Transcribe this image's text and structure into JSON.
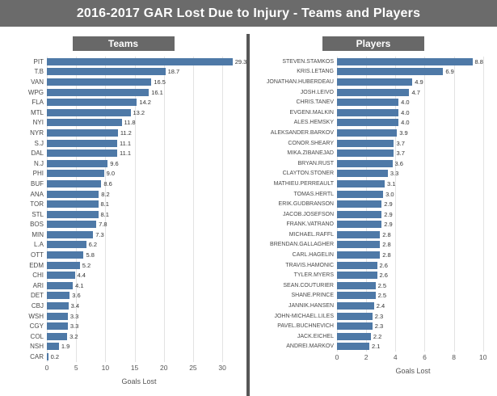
{
  "title": "2016-2017 GAR Lost Due to Injury - Teams and Players",
  "colors": {
    "title_bar_bg": "#6b6b6b",
    "panel_header_bg": "#686868",
    "bar": "#4e79a7",
    "divider": "#575757"
  },
  "chart_data": [
    {
      "type": "bar",
      "orientation": "horizontal",
      "title": "Teams",
      "xlabel": "Goals Lost",
      "xticks": [
        0,
        5,
        10,
        15,
        20,
        25,
        30
      ],
      "xlim": [
        0,
        31.5
      ],
      "grid": true,
      "categories": [
        "PIT",
        "T.B",
        "VAN",
        "WPG",
        "FLA",
        "MTL",
        "NYI",
        "NYR",
        "S.J",
        "DAL",
        "N.J",
        "PHI",
        "BUF",
        "ANA",
        "TOR",
        "STL",
        "BOS",
        "MIN",
        "L.A",
        "OTT",
        "EDM",
        "CHI",
        "ARI",
        "DET",
        "CBJ",
        "WSH",
        "CGY",
        "COL",
        "NSH",
        "CAR"
      ],
      "values": [
        29.3,
        18.7,
        16.5,
        16.1,
        14.2,
        13.2,
        11.8,
        11.2,
        11.1,
        11.1,
        9.6,
        9.0,
        8.6,
        8.2,
        8.1,
        8.1,
        7.8,
        7.3,
        6.2,
        5.8,
        5.2,
        4.4,
        4.1,
        3.6,
        3.4,
        3.3,
        3.3,
        3.2,
        1.9,
        0.2
      ]
    },
    {
      "type": "bar",
      "orientation": "horizontal",
      "title": "Players",
      "xlabel": "Goals Lost",
      "xticks": [
        0,
        2,
        4,
        6,
        8,
        10
      ],
      "xlim": [
        0,
        10.4
      ],
      "grid": true,
      "categories": [
        "STEVEN.STAMKOS",
        "KRIS.LETANG",
        "JONATHAN.HUBERDEAU",
        "JOSH.LEIVO",
        "CHRIS.TANEV",
        "EVGENI.MALKIN",
        "ALES.HEMSKY",
        "ALEKSANDER.BARKOV",
        "CONOR.SHEARY",
        "MIKA.ZIBANEJAD",
        "BRYAN.RUST",
        "CLAYTON.STONER",
        "MATHIEU.PERREAULT",
        "TOMAS.HERTL",
        "ERIK.GUDBRANSON",
        "JACOB.JOSEFSON",
        "FRANK.VATRANO",
        "MICHAEL.RAFFL",
        "BRENDAN.GALLAGHER",
        "CARL.HAGELIN",
        "TRAVIS.HAMONIC",
        "TYLER.MYERS",
        "SEAN.COUTURIER",
        "SHANE.PRINCE",
        "JANNIK.HANSEN",
        "JOHN-MICHAEL.LILES",
        "PAVEL.BUCHNEVICH",
        "JACK.EICHEL",
        "ANDREI.MARKOV"
      ],
      "values": [
        8.8,
        6.9,
        4.9,
        4.7,
        4.0,
        4.0,
        4.0,
        3.9,
        3.7,
        3.7,
        3.6,
        3.3,
        3.1,
        3.0,
        2.9,
        2.9,
        2.9,
        2.8,
        2.8,
        2.8,
        2.6,
        2.6,
        2.5,
        2.5,
        2.4,
        2.3,
        2.3,
        2.2,
        2.1
      ]
    }
  ]
}
